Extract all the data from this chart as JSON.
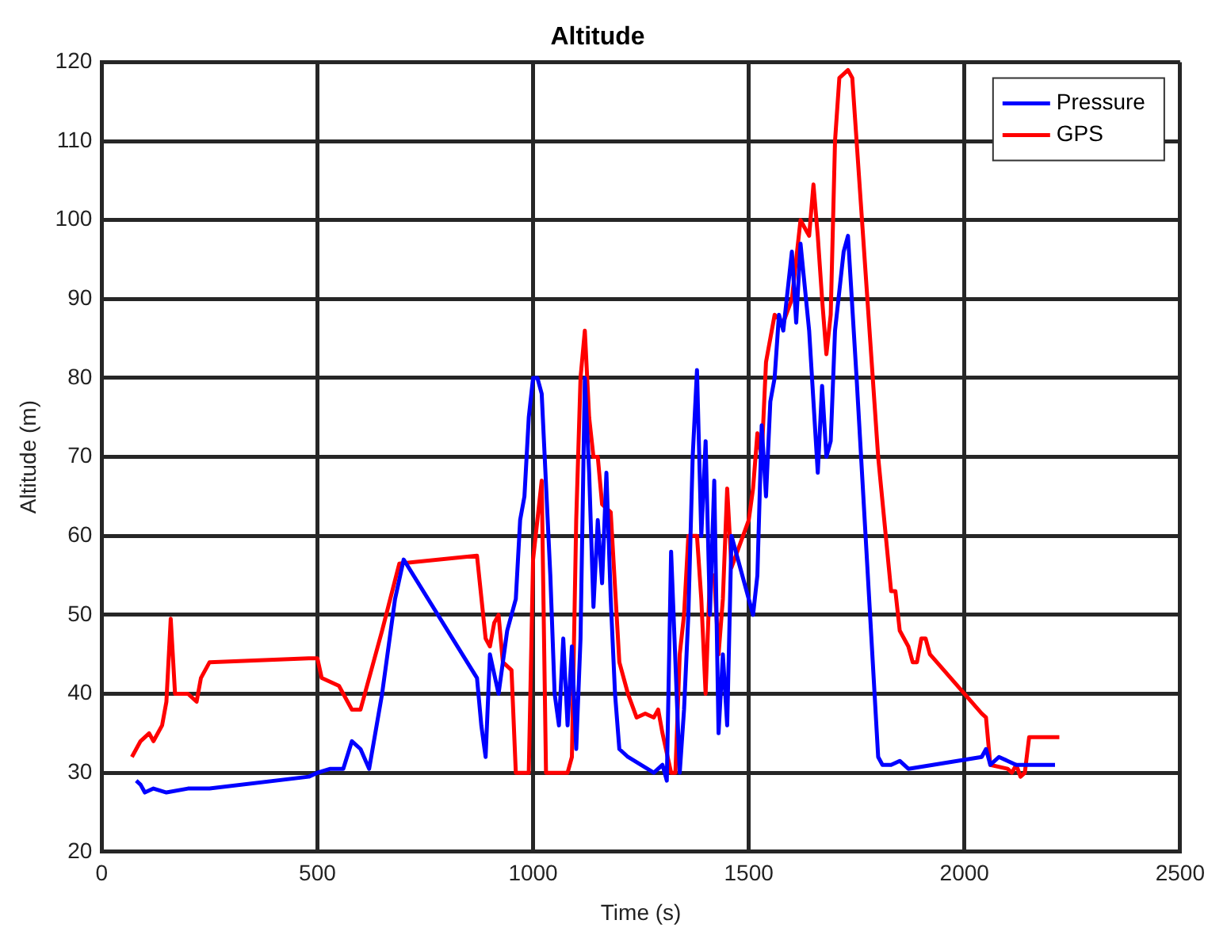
{
  "chart_data": {
    "type": "line",
    "title": "Altitude",
    "xlabel": "Time (s)",
    "ylabel": "Altitude (m)",
    "xlim": [
      0,
      2500
    ],
    "xticks": [
      0,
      500,
      1000,
      1500,
      2000,
      2500
    ],
    "ylim": [
      20,
      120
    ],
    "yticks": [
      20,
      30,
      40,
      50,
      60,
      70,
      80,
      90,
      100,
      110,
      120
    ],
    "grid": true,
    "legend": "top right",
    "marker": "none",
    "line_style": "solid",
    "series": [
      {
        "name": "Pressure",
        "color": "#0000ff",
        "x": [
          80,
          90,
          100,
          120,
          150,
          200,
          250,
          480,
          500,
          530,
          560,
          580,
          600,
          620,
          650,
          680,
          700,
          870,
          880,
          890,
          900,
          920,
          940,
          960,
          970,
          980,
          990,
          1000,
          1010,
          1020,
          1040,
          1050,
          1060,
          1070,
          1080,
          1090,
          1100,
          1110,
          1120,
          1130,
          1140,
          1150,
          1160,
          1170,
          1180,
          1190,
          1200,
          1220,
          1250,
          1280,
          1300,
          1310,
          1320,
          1330,
          1340,
          1350,
          1360,
          1370,
          1380,
          1390,
          1400,
          1410,
          1420,
          1430,
          1440,
          1450,
          1460,
          1510,
          1520,
          1530,
          1540,
          1550,
          1560,
          1570,
          1580,
          1600,
          1610,
          1620,
          1640,
          1650,
          1660,
          1670,
          1680,
          1690,
          1700,
          1720,
          1730,
          1750,
          1800,
          1810,
          1830,
          1850,
          1870,
          2040,
          2050,
          2060,
          2080,
          2100,
          2120,
          2150,
          2200,
          2210
        ],
        "values": [
          29,
          28.5,
          27.5,
          28,
          27.5,
          28,
          28,
          29.5,
          30,
          30.5,
          30.5,
          34,
          33,
          30.5,
          40,
          52,
          57,
          42,
          36,
          32,
          45,
          40,
          48,
          52,
          62,
          65,
          75,
          80,
          80,
          78,
          55,
          40,
          36,
          47,
          36,
          46,
          33,
          47,
          80,
          68,
          51,
          62,
          54,
          68,
          52,
          40,
          33,
          32,
          31,
          30,
          31,
          29,
          58,
          44,
          30,
          38,
          50,
          70,
          81,
          60,
          72,
          50,
          67,
          35,
          45,
          36,
          60,
          50,
          55,
          74,
          65,
          77,
          80,
          88,
          86,
          96,
          87,
          97,
          86,
          77,
          68,
          79,
          70,
          72,
          86,
          96,
          98,
          80,
          32,
          31,
          31,
          31.5,
          30.5,
          32,
          33,
          31,
          32,
          31.5,
          31,
          31,
          31,
          31
        ]
      },
      {
        "name": "GPS",
        "color": "#ff0000",
        "x": [
          70,
          90,
          110,
          120,
          140,
          150,
          160,
          170,
          200,
          220,
          230,
          250,
          480,
          500,
          510,
          550,
          580,
          600,
          650,
          690,
          870,
          890,
          900,
          910,
          920,
          930,
          950,
          960,
          990,
          1000,
          1020,
          1030,
          1080,
          1090,
          1100,
          1110,
          1120,
          1130,
          1140,
          1150,
          1160,
          1180,
          1200,
          1220,
          1240,
          1260,
          1280,
          1290,
          1300,
          1320,
          1330,
          1340,
          1350,
          1360,
          1380,
          1390,
          1400,
          1410,
          1420,
          1430,
          1440,
          1450,
          1460,
          1500,
          1510,
          1520,
          1530,
          1540,
          1560,
          1580,
          1600,
          1620,
          1640,
          1650,
          1660,
          1670,
          1680,
          1690,
          1700,
          1710,
          1730,
          1740,
          1800,
          1830,
          1840,
          1850,
          1870,
          1880,
          1890,
          1900,
          1910,
          1920,
          2040,
          2050,
          2060,
          2100,
          2110,
          2120,
          2130,
          2140,
          2150,
          2220
        ],
        "values": [
          32,
          34,
          35,
          34,
          36,
          39,
          49.5,
          40,
          40,
          39,
          42,
          44,
          44.5,
          44.5,
          42,
          41,
          38,
          38,
          48,
          56.5,
          57.5,
          47,
          46,
          49,
          50,
          44,
          43,
          30,
          30,
          57,
          67,
          30,
          30,
          32,
          62,
          80,
          86,
          75,
          70,
          70,
          64,
          63,
          44,
          40,
          37,
          37.5,
          37,
          38,
          35,
          30,
          30,
          45,
          50,
          60,
          60,
          52,
          40,
          55,
          55,
          45,
          52,
          66,
          56,
          62,
          66,
          73,
          70,
          82,
          88,
          87,
          90,
          100,
          98,
          104.5,
          98,
          90,
          83,
          88,
          110,
          118,
          119,
          118,
          70,
          53,
          53,
          48,
          46,
          44,
          44,
          47,
          47,
          45,
          37.5,
          37,
          31,
          30.5,
          30,
          31,
          29.5,
          30,
          34.5,
          34.5
        ]
      }
    ]
  }
}
